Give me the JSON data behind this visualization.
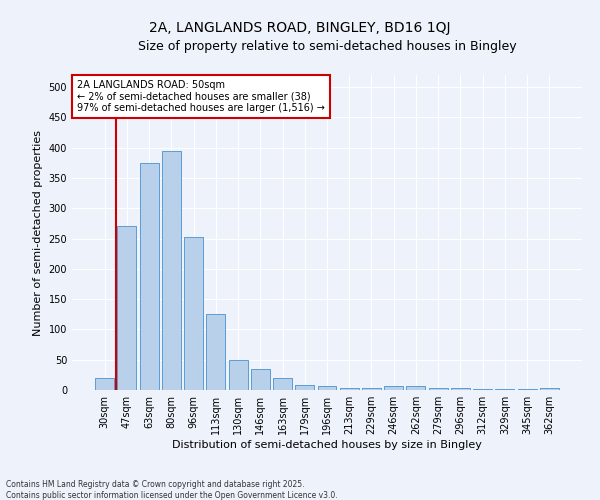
{
  "title1": "2A, LANGLANDS ROAD, BINGLEY, BD16 1QJ",
  "title2": "Size of property relative to semi-detached houses in Bingley",
  "xlabel": "Distribution of semi-detached houses by size in Bingley",
  "ylabel": "Number of semi-detached properties",
  "categories": [
    "30sqm",
    "47sqm",
    "63sqm",
    "80sqm",
    "96sqm",
    "113sqm",
    "130sqm",
    "146sqm",
    "163sqm",
    "179sqm",
    "196sqm",
    "213sqm",
    "229sqm",
    "246sqm",
    "262sqm",
    "279sqm",
    "296sqm",
    "312sqm",
    "329sqm",
    "345sqm",
    "362sqm"
  ],
  "values": [
    20,
    270,
    375,
    395,
    252,
    125,
    50,
    35,
    20,
    9,
    6,
    4,
    4,
    7,
    7,
    4,
    3,
    1,
    1,
    1,
    4
  ],
  "bar_color": "#b8d0ea",
  "bar_edge_color": "#5b9bd5",
  "vline_color": "#cc0000",
  "annotation_box_text": "2A LANGLANDS ROAD: 50sqm\n← 2% of semi-detached houses are smaller (38)\n97% of semi-detached houses are larger (1,516) →",
  "annotation_box_edge_color": "#cc0000",
  "annotation_box_facecolor": "#ffffff",
  "footer_text": "Contains HM Land Registry data © Crown copyright and database right 2025.\nContains public sector information licensed under the Open Government Licence v3.0.",
  "ylim": [
    0,
    520
  ],
  "yticks": [
    0,
    50,
    100,
    150,
    200,
    250,
    300,
    350,
    400,
    450,
    500
  ],
  "bg_color": "#edf2fb",
  "grid_color": "#ffffff",
  "title1_fontsize": 10,
  "title2_fontsize": 9,
  "xlabel_fontsize": 8,
  "ylabel_fontsize": 8,
  "tick_fontsize": 7,
  "annot_fontsize": 7,
  "footer_fontsize": 5.5
}
